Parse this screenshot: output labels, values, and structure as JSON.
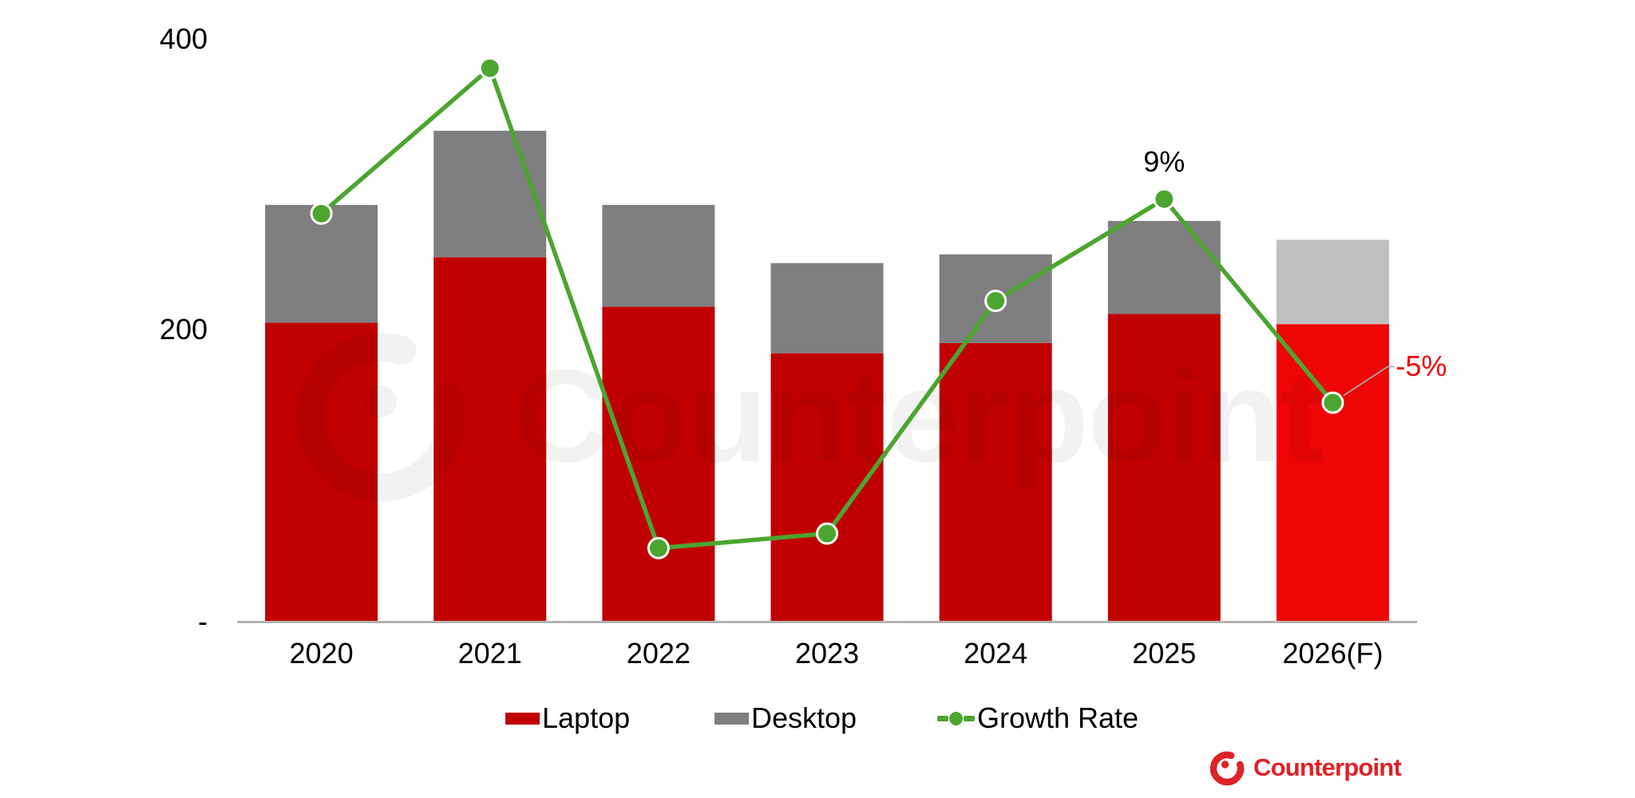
{
  "chart_data": {
    "type": "bar",
    "subtype": "stacked-columns-with-line-overlay",
    "categories": [
      "2020",
      "2021",
      "2022",
      "2023",
      "2024",
      "2025",
      "2026(F)"
    ],
    "series": [
      {
        "name": "Laptop",
        "type": "bar",
        "stack": "pc",
        "values": [
          205,
          250,
          216,
          184,
          191,
          211,
          204
        ],
        "color": "#C00000",
        "forecast_color": "#EE0505"
      },
      {
        "name": "Desktop",
        "type": "bar",
        "stack": "pc",
        "values": [
          81,
          87,
          70,
          62,
          61,
          64,
          58
        ],
        "color": "#7F7F7F",
        "forecast_color": "#BFBFBF"
      },
      {
        "name": "Growth Rate",
        "type": "line",
        "axis": "secondary",
        "unit": "%",
        "values": [
          8,
          18,
          -15,
          -14,
          2,
          9,
          -5
        ],
        "color": "#4CA52F",
        "marker_border": "#FFFFFF"
      }
    ],
    "totals": [
      286,
      337,
      286,
      246,
      252,
      275,
      262
    ],
    "forecast_index": 6,
    "y_axis": {
      "ticks": [
        "400",
        "200",
        "-"
      ],
      "min": 0,
      "max": 400,
      "gridlines": false
    },
    "y2_axis": {
      "min": -20,
      "max": 20,
      "hidden": true
    },
    "annotations": [
      {
        "series": "Growth Rate",
        "index": 5,
        "text": "9%",
        "color": "#000000",
        "leader": false
      },
      {
        "series": "Growth Rate",
        "index": 6,
        "text": "-5%",
        "color": "#EE0505",
        "leader": true
      }
    ],
    "axis_line_color": "#A6A6A6",
    "legend_position": "bottom"
  },
  "watermark": {
    "text": "Counterpoint"
  },
  "logo": {
    "text": "Counterpoint",
    "color": "#DD2326"
  }
}
